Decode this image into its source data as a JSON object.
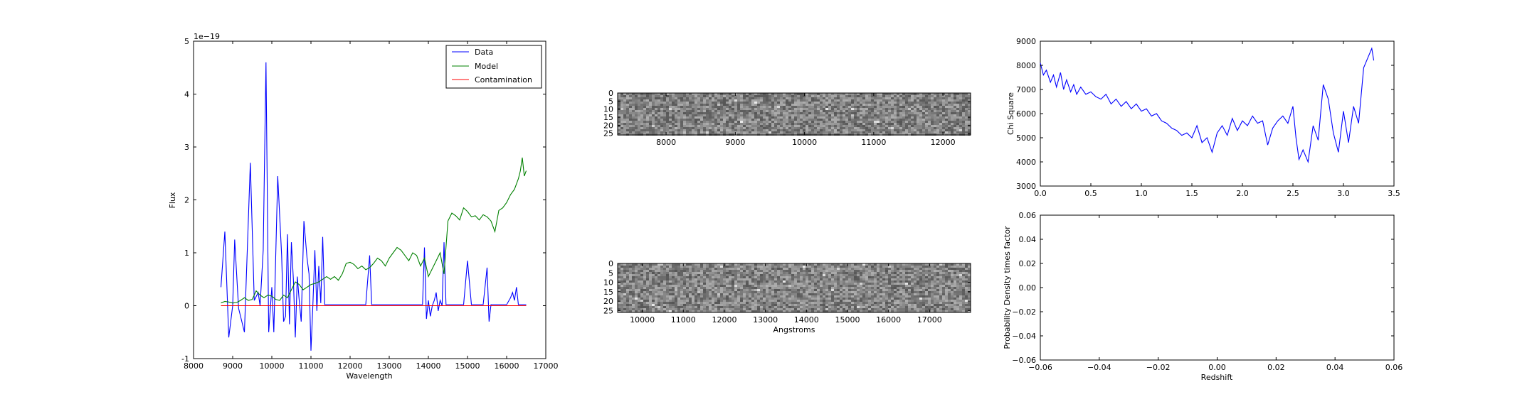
{
  "chart_data": [
    {
      "type": "line",
      "xlabel": "Wavelength",
      "ylabel": "Flux",
      "offset_text": "1e−19",
      "xlim": [
        8000,
        17000
      ],
      "ylim": [
        -1,
        5
      ],
      "xticks": [
        8000,
        9000,
        10000,
        11000,
        12000,
        13000,
        14000,
        15000,
        16000,
        17000
      ],
      "yticks": [
        -1,
        0,
        1,
        2,
        3,
        4,
        5
      ],
      "legend": {
        "placement": "top-right",
        "entries": [
          "Data",
          "Model",
          "Contamination"
        ]
      },
      "series": [
        {
          "name": "Data",
          "color": "#0000ff",
          "x": [
            8700,
            8800,
            8900,
            9000,
            9050,
            9150,
            9300,
            9450,
            9550,
            9650,
            9700,
            9780,
            9850,
            9920,
            10000,
            10050,
            10150,
            10250,
            10300,
            10350,
            10400,
            10450,
            10500,
            10550,
            10600,
            10650,
            10700,
            10750,
            10820,
            10900,
            10950,
            11000,
            11050,
            11100,
            11150,
            11200,
            11250,
            11300,
            11350,
            11400,
            11600,
            12000,
            12400,
            12500,
            12550,
            12650,
            13000,
            13500,
            13850,
            13900,
            13950,
            14000,
            14050,
            14100,
            14150,
            14200,
            14250,
            14300,
            14350,
            14400,
            14450,
            14500,
            14600,
            14800,
            14900,
            15000,
            15100,
            15200,
            15300,
            15400,
            15500,
            15550,
            15600,
            15700,
            15800,
            15900,
            16000,
            16100,
            16150,
            16200,
            16250,
            16300,
            16400,
            16500
          ],
          "y": [
            0.35,
            1.4,
            -0.6,
            0.0,
            1.25,
            -0.05,
            -0.5,
            2.7,
            0.1,
            0.25,
            0.0,
            1.05,
            4.6,
            -0.5,
            0.35,
            -0.5,
            2.45,
            0.95,
            -0.3,
            -0.2,
            1.35,
            -0.35,
            1.2,
            0.5,
            -0.6,
            0.55,
            0.1,
            -0.3,
            1.6,
            0.9,
            0.6,
            -0.85,
            0.05,
            1.05,
            -0.1,
            0.75,
            0.05,
            1.3,
            0.02,
            0.02,
            0.02,
            0.02,
            0.02,
            0.95,
            0.02,
            0.02,
            0.02,
            0.02,
            0.02,
            1.1,
            -0.25,
            0.1,
            -0.2,
            0.0,
            0.1,
            0.25,
            -0.1,
            0.1,
            0.0,
            1.2,
            0.02,
            0.02,
            0.02,
            0.02,
            0.02,
            0.85,
            0.02,
            0.02,
            0.02,
            0.02,
            0.72,
            -0.3,
            0.02,
            0.02,
            0.02,
            0.02,
            0.02,
            0.15,
            0.25,
            0.1,
            0.35,
            0.02,
            0.02,
            0.02
          ]
        },
        {
          "name": "Model",
          "color": "#008000",
          "x": [
            8700,
            8800,
            8900,
            9000,
            9100,
            9200,
            9300,
            9400,
            9500,
            9600,
            9700,
            9800,
            9900,
            10000,
            10100,
            10200,
            10300,
            10400,
            10500,
            10600,
            10700,
            10800,
            10900,
            11000,
            11100,
            11200,
            11300,
            11400,
            11500,
            11600,
            11700,
            11800,
            11900,
            12000,
            12100,
            12200,
            12300,
            12400,
            12500,
            12600,
            12700,
            12800,
            12900,
            13000,
            13100,
            13200,
            13300,
            13400,
            13500,
            13600,
            13700,
            13800,
            13900,
            14000,
            14100,
            14200,
            14300,
            14400,
            14500,
            14600,
            14700,
            14800,
            14900,
            15000,
            15100,
            15200,
            15300,
            15400,
            15500,
            15600,
            15700,
            15800,
            15900,
            16000,
            16100,
            16200,
            16300,
            16350,
            16400,
            16450,
            16500
          ],
          "y": [
            0.05,
            0.08,
            0.07,
            0.05,
            0.06,
            0.1,
            0.15,
            0.1,
            0.12,
            0.28,
            0.2,
            0.15,
            0.2,
            0.18,
            0.12,
            0.1,
            0.2,
            0.15,
            0.3,
            0.45,
            0.4,
            0.3,
            0.35,
            0.4,
            0.42,
            0.45,
            0.5,
            0.55,
            0.5,
            0.55,
            0.48,
            0.6,
            0.8,
            0.82,
            0.78,
            0.7,
            0.75,
            0.68,
            0.72,
            0.8,
            0.9,
            0.85,
            0.75,
            0.9,
            1.0,
            1.1,
            1.05,
            0.95,
            0.85,
            1.0,
            0.95,
            0.75,
            0.9,
            0.55,
            0.7,
            0.85,
            1.0,
            0.6,
            1.6,
            1.75,
            1.7,
            1.62,
            1.85,
            1.78,
            1.68,
            1.7,
            1.62,
            1.72,
            1.68,
            1.6,
            1.4,
            1.8,
            1.85,
            1.95,
            2.1,
            2.2,
            2.4,
            2.55,
            2.8,
            2.45,
            2.55
          ]
        },
        {
          "name": "Contamination",
          "color": "#ff0000",
          "x": [
            8700,
            16500
          ],
          "y": [
            0.0,
            0.0
          ]
        }
      ]
    },
    {
      "type": "heatmap",
      "title": "",
      "xlabel": "",
      "ylabel": "",
      "xlim": [
        7300,
        12400
      ],
      "ylim": [
        26,
        0
      ],
      "xticks": [
        8000,
        9000,
        10000,
        11000,
        12000
      ],
      "yticks": [
        0,
        5,
        10,
        15,
        20,
        25
      ]
    },
    {
      "type": "heatmap",
      "title": "",
      "xlabel": "Angstroms",
      "ylabel": "",
      "xlim": [
        9400,
        18000
      ],
      "ylim": [
        26,
        0
      ],
      "xticks": [
        10000,
        11000,
        12000,
        13000,
        14000,
        15000,
        16000,
        17000
      ],
      "yticks": [
        0,
        5,
        10,
        15,
        20,
        25
      ]
    },
    {
      "type": "line",
      "xlabel": "",
      "ylabel": "Chi Square",
      "xlim": [
        0.0,
        3.5
      ],
      "ylim": [
        3000,
        9000
      ],
      "xticks": [
        "0.0",
        "0.5",
        "1.0",
        "1.5",
        "2.0",
        "2.5",
        "3.0",
        "3.5"
      ],
      "yticks": [
        3000,
        4000,
        5000,
        6000,
        7000,
        8000,
        9000
      ],
      "series": [
        {
          "color": "#0000ff",
          "x": [
            0.0,
            0.03,
            0.06,
            0.1,
            0.13,
            0.16,
            0.2,
            0.23,
            0.26,
            0.3,
            0.33,
            0.36,
            0.4,
            0.45,
            0.5,
            0.55,
            0.6,
            0.65,
            0.7,
            0.75,
            0.8,
            0.85,
            0.9,
            0.95,
            1.0,
            1.05,
            1.1,
            1.15,
            1.2,
            1.25,
            1.3,
            1.35,
            1.4,
            1.45,
            1.5,
            1.55,
            1.6,
            1.65,
            1.7,
            1.75,
            1.8,
            1.85,
            1.9,
            1.95,
            2.0,
            2.05,
            2.1,
            2.15,
            2.2,
            2.25,
            2.3,
            2.35,
            2.4,
            2.45,
            2.5,
            2.53,
            2.56,
            2.6,
            2.65,
            2.7,
            2.75,
            2.8,
            2.85,
            2.9,
            2.95,
            3.0,
            3.05,
            3.1,
            3.15,
            3.2,
            3.25,
            3.28,
            3.3
          ],
          "y": [
            8100,
            7600,
            7800,
            7300,
            7600,
            7100,
            7700,
            7000,
            7400,
            6900,
            7200,
            6800,
            7100,
            6800,
            6900,
            6700,
            6600,
            6800,
            6400,
            6600,
            6300,
            6500,
            6200,
            6400,
            6100,
            6200,
            5900,
            6000,
            5700,
            5600,
            5400,
            5300,
            5100,
            5200,
            5000,
            5500,
            4800,
            5000,
            4400,
            5200,
            5500,
            5100,
            5800,
            5300,
            5700,
            5500,
            5900,
            5600,
            5700,
            4700,
            5400,
            5700,
            5900,
            5600,
            6300,
            5000,
            4100,
            4500,
            4000,
            5500,
            4900,
            7200,
            6600,
            5200,
            4400,
            6100,
            4800,
            6300,
            5600,
            7900,
            8400,
            8700,
            8200
          ]
        }
      ]
    },
    {
      "type": "line",
      "xlabel": "Redshift",
      "ylabel": "Probability Density times factor",
      "xlim": [
        -0.06,
        0.06
      ],
      "ylim": [
        -0.06,
        0.06
      ],
      "xticks": [
        "−0.06",
        "−0.04",
        "−0.02",
        "0.00",
        "0.02",
        "0.04",
        "0.06"
      ],
      "yticks": [
        "−0.06",
        "−0.04",
        "−0.02",
        "0.00",
        "0.02",
        "0.04",
        "0.06"
      ],
      "series": []
    }
  ]
}
